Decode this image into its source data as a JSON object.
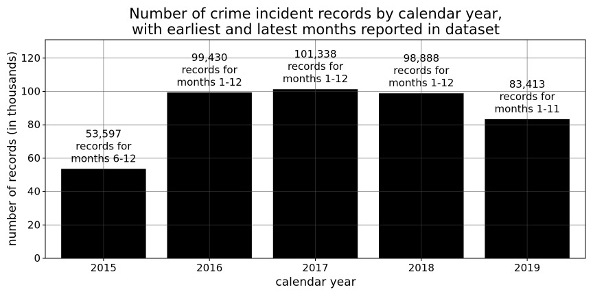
{
  "chart_data": {
    "type": "bar",
    "title": [
      "Number of crime incident records by calendar year,",
      "with earliest and latest months reported in dataset"
    ],
    "xlabel": "calendar year",
    "ylabel": "number of records (in thousands)",
    "categories": [
      "2015",
      "2016",
      "2017",
      "2018",
      "2019"
    ],
    "values": [
      53.597,
      99.43,
      101.338,
      98.888,
      83.413
    ],
    "bar_labels": [
      [
        "53,597",
        "records for",
        "months 6-12"
      ],
      [
        "99,430",
        "records for",
        "months 1-12"
      ],
      [
        "101,338",
        "records for",
        "months 1-12"
      ],
      [
        "98,888",
        "records for",
        "months 1-12"
      ],
      [
        "83,413",
        "records for",
        "months 1-11"
      ]
    ],
    "ylim": [
      0,
      131
    ],
    "yticks": [
      0,
      20,
      40,
      60,
      80,
      100,
      120
    ],
    "grid": true,
    "bar_color": "#000000"
  }
}
